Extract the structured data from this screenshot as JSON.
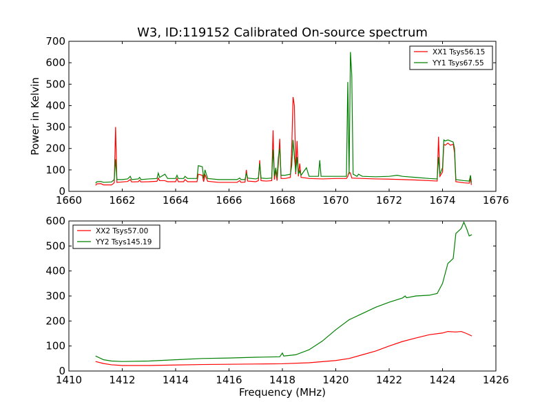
{
  "title": "W3, ID:119152 Calibrated On-source spectrum",
  "colors": {
    "red": "#ff0000",
    "green": "#008000",
    "axis": "#000000"
  },
  "chart_data": [
    {
      "type": "line",
      "title": "W3, ID:119152 Calibrated On-source spectrum",
      "xlabel": "",
      "ylabel": "Power in Kelvin",
      "xlim": [
        1660,
        1676
      ],
      "ylim": [
        0,
        700
      ],
      "xticks": [
        1660,
        1662,
        1664,
        1666,
        1668,
        1670,
        1672,
        1674,
        1676
      ],
      "yticks": [
        0,
        100,
        200,
        300,
        400,
        500,
        600,
        700
      ],
      "legend": "top-right",
      "series": [
        {
          "name": "XX1 Tsys56.15",
          "color": "#ff0000",
          "points": [
            [
              1661.0,
              28
            ],
            [
              1661.05,
              35
            ],
            [
              1661.2,
              36
            ],
            [
              1661.3,
              30
            ],
            [
              1661.6,
              30
            ],
            [
              1661.7,
              40
            ],
            [
              1661.75,
              300
            ],
            [
              1661.8,
              42
            ],
            [
              1662.0,
              44
            ],
            [
              1662.2,
              46
            ],
            [
              1662.3,
              55
            ],
            [
              1662.35,
              44
            ],
            [
              1662.6,
              45
            ],
            [
              1662.65,
              52
            ],
            [
              1662.7,
              44
            ],
            [
              1663.0,
              45
            ],
            [
              1663.3,
              47
            ],
            [
              1663.35,
              62
            ],
            [
              1663.4,
              50
            ],
            [
              1663.6,
              50
            ],
            [
              1663.7,
              45
            ],
            [
              1664.0,
              45
            ],
            [
              1664.05,
              60
            ],
            [
              1664.1,
              45
            ],
            [
              1664.3,
              45
            ],
            [
              1664.35,
              55
            ],
            [
              1664.45,
              45
            ],
            [
              1664.8,
              45
            ],
            [
              1664.85,
              80
            ],
            [
              1665.0,
              75
            ],
            [
              1665.05,
              45
            ],
            [
              1665.1,
              78
            ],
            [
              1665.2,
              47
            ],
            [
              1665.6,
              42
            ],
            [
              1666.0,
              42
            ],
            [
              1666.3,
              42
            ],
            [
              1666.4,
              50
            ],
            [
              1666.45,
              42
            ],
            [
              1666.6,
              43
            ],
            [
              1666.65,
              100
            ],
            [
              1666.7,
              48
            ],
            [
              1667.0,
              45
            ],
            [
              1667.1,
              50
            ],
            [
              1667.15,
              145
            ],
            [
              1667.2,
              50
            ],
            [
              1667.4,
              48
            ],
            [
              1667.6,
              50
            ],
            [
              1667.65,
              285
            ],
            [
              1667.7,
              55
            ],
            [
              1667.75,
              100
            ],
            [
              1667.8,
              50
            ],
            [
              1667.85,
              130
            ],
            [
              1667.9,
              245
            ],
            [
              1667.95,
              60
            ],
            [
              1668.1,
              60
            ],
            [
              1668.3,
              65
            ],
            [
              1668.35,
              200
            ],
            [
              1668.4,
              440
            ],
            [
              1668.45,
              400
            ],
            [
              1668.5,
              80
            ],
            [
              1668.55,
              235
            ],
            [
              1668.6,
              70
            ],
            [
              1668.65,
              130
            ],
            [
              1668.7,
              65
            ],
            [
              1668.9,
              62
            ],
            [
              1669.0,
              60
            ],
            [
              1669.5,
              58
            ],
            [
              1670.0,
              60
            ],
            [
              1670.4,
              60
            ],
            [
              1670.45,
              70
            ],
            [
              1670.5,
              90
            ],
            [
              1670.55,
              85
            ],
            [
              1670.6,
              62
            ],
            [
              1671.0,
              60
            ],
            [
              1671.5,
              58
            ],
            [
              1672.0,
              57
            ],
            [
              1672.5,
              55
            ],
            [
              1673.0,
              53
            ],
            [
              1673.5,
              50
            ],
            [
              1673.8,
              48
            ],
            [
              1673.85,
              255
            ],
            [
              1673.9,
              70
            ],
            [
              1674.0,
              90
            ],
            [
              1674.05,
              220
            ],
            [
              1674.1,
              215
            ],
            [
              1674.2,
              225
            ],
            [
              1674.3,
              215
            ],
            [
              1674.4,
              220
            ],
            [
              1674.45,
              180
            ],
            [
              1674.5,
              45
            ],
            [
              1674.8,
              40
            ],
            [
              1675.0,
              38
            ],
            [
              1675.05,
              60
            ],
            [
              1675.08,
              30
            ]
          ]
        },
        {
          "name": "YY1 Tsys67.55",
          "color": "#008000",
          "points": [
            [
              1661.0,
              38
            ],
            [
              1661.05,
              45
            ],
            [
              1661.2,
              46
            ],
            [
              1661.3,
              42
            ],
            [
              1661.6,
              44
            ],
            [
              1661.7,
              55
            ],
            [
              1661.75,
              150
            ],
            [
              1661.8,
              55
            ],
            [
              1662.0,
              55
            ],
            [
              1662.2,
              58
            ],
            [
              1662.3,
              70
            ],
            [
              1662.35,
              55
            ],
            [
              1662.6,
              58
            ],
            [
              1662.65,
              65
            ],
            [
              1662.7,
              55
            ],
            [
              1663.0,
              58
            ],
            [
              1663.3,
              60
            ],
            [
              1663.35,
              85
            ],
            [
              1663.4,
              65
            ],
            [
              1663.6,
              80
            ],
            [
              1663.7,
              60
            ],
            [
              1664.0,
              60
            ],
            [
              1664.05,
              75
            ],
            [
              1664.1,
              60
            ],
            [
              1664.3,
              60
            ],
            [
              1664.35,
              70
            ],
            [
              1664.45,
              60
            ],
            [
              1664.8,
              60
            ],
            [
              1664.85,
              120
            ],
            [
              1665.0,
              115
            ],
            [
              1665.05,
              60
            ],
            [
              1665.1,
              100
            ],
            [
              1665.2,
              60
            ],
            [
              1665.6,
              55
            ],
            [
              1666.0,
              55
            ],
            [
              1666.3,
              55
            ],
            [
              1666.4,
              62
            ],
            [
              1666.45,
              55
            ],
            [
              1666.6,
              55
            ],
            [
              1666.65,
              85
            ],
            [
              1666.7,
              62
            ],
            [
              1667.0,
              58
            ],
            [
              1667.1,
              62
            ],
            [
              1667.15,
              130
            ],
            [
              1667.2,
              62
            ],
            [
              1667.4,
              60
            ],
            [
              1667.6,
              62
            ],
            [
              1667.65,
              195
            ],
            [
              1667.7,
              70
            ],
            [
              1667.75,
              110
            ],
            [
              1667.8,
              65
            ],
            [
              1667.85,
              160
            ],
            [
              1667.9,
              200
            ],
            [
              1667.95,
              75
            ],
            [
              1668.1,
              75
            ],
            [
              1668.3,
              80
            ],
            [
              1668.35,
              120
            ],
            [
              1668.4,
              240
            ],
            [
              1668.45,
              160
            ],
            [
              1668.5,
              90
            ],
            [
              1668.55,
              160
            ],
            [
              1668.6,
              80
            ],
            [
              1668.65,
              95
            ],
            [
              1668.7,
              75
            ],
            [
              1668.9,
              110
            ],
            [
              1669.0,
              70
            ],
            [
              1669.35,
              70
            ],
            [
              1669.4,
              145
            ],
            [
              1669.45,
              70
            ],
            [
              1670.0,
              70
            ],
            [
              1670.4,
              70
            ],
            [
              1670.45,
              510
            ],
            [
              1670.5,
              80
            ],
            [
              1670.55,
              650
            ],
            [
              1670.6,
              540
            ],
            [
              1670.65,
              80
            ],
            [
              1670.8,
              70
            ],
            [
              1670.85,
              80
            ],
            [
              1671.0,
              70
            ],
            [
              1671.5,
              68
            ],
            [
              1672.0,
              70
            ],
            [
              1672.3,
              75
            ],
            [
              1672.5,
              70
            ],
            [
              1673.0,
              65
            ],
            [
              1673.5,
              60
            ],
            [
              1673.8,
              58
            ],
            [
              1673.85,
              160
            ],
            [
              1673.9,
              80
            ],
            [
              1674.0,
              110
            ],
            [
              1674.05,
              240
            ],
            [
              1674.1,
              235
            ],
            [
              1674.2,
              240
            ],
            [
              1674.3,
              235
            ],
            [
              1674.4,
              230
            ],
            [
              1674.45,
              200
            ],
            [
              1674.5,
              55
            ],
            [
              1674.8,
              50
            ],
            [
              1675.0,
              48
            ],
            [
              1675.05,
              75
            ],
            [
              1675.08,
              40
            ]
          ]
        }
      ]
    },
    {
      "type": "line",
      "title": "",
      "xlabel": "Frequency (MHz)",
      "ylabel": "",
      "xlim": [
        1410,
        1426
      ],
      "ylim": [
        0,
        600
      ],
      "xticks": [
        1410,
        1412,
        1414,
        1416,
        1418,
        1420,
        1422,
        1424,
        1426
      ],
      "yticks": [
        0,
        100,
        200,
        300,
        400,
        500,
        600
      ],
      "legend": "top-left",
      "series": [
        {
          "name": "XX2 Tsys57.00",
          "color": "#ff0000",
          "points": [
            [
              1411.0,
              38
            ],
            [
              1411.3,
              30
            ],
            [
              1411.6,
              25
            ],
            [
              1412.0,
              22
            ],
            [
              1413.0,
              22
            ],
            [
              1414.0,
              24
            ],
            [
              1415.0,
              26
            ],
            [
              1416.0,
              27
            ],
            [
              1417.0,
              28
            ],
            [
              1418.0,
              29
            ],
            [
              1419.0,
              33
            ],
            [
              1420.0,
              42
            ],
            [
              1420.5,
              50
            ],
            [
              1421.0,
              65
            ],
            [
              1421.5,
              80
            ],
            [
              1422.0,
              100
            ],
            [
              1422.5,
              118
            ],
            [
              1423.0,
              132
            ],
            [
              1423.5,
              145
            ],
            [
              1424.0,
              152
            ],
            [
              1424.2,
              158
            ],
            [
              1424.5,
              156
            ],
            [
              1424.7,
              158
            ],
            [
              1424.9,
              150
            ],
            [
              1425.1,
              140
            ]
          ]
        },
        {
          "name": "YY2 Tsys145.19",
          "color": "#008000",
          "points": [
            [
              1411.0,
              60
            ],
            [
              1411.3,
              45
            ],
            [
              1411.6,
              40
            ],
            [
              1412.0,
              38
            ],
            [
              1413.0,
              40
            ],
            [
              1414.0,
              45
            ],
            [
              1415.0,
              50
            ],
            [
              1416.0,
              52
            ],
            [
              1417.0,
              55
            ],
            [
              1417.9,
              57
            ],
            [
              1418.0,
              72
            ],
            [
              1418.05,
              60
            ],
            [
              1418.5,
              65
            ],
            [
              1419.0,
              85
            ],
            [
              1419.5,
              120
            ],
            [
              1420.0,
              165
            ],
            [
              1420.5,
              205
            ],
            [
              1421.0,
              230
            ],
            [
              1421.5,
              255
            ],
            [
              1422.0,
              275
            ],
            [
              1422.5,
              292
            ],
            [
              1422.6,
              300
            ],
            [
              1422.65,
              293
            ],
            [
              1423.0,
              300
            ],
            [
              1423.5,
              303
            ],
            [
              1423.8,
              310
            ],
            [
              1424.0,
              350
            ],
            [
              1424.2,
              430
            ],
            [
              1424.3,
              440
            ],
            [
              1424.4,
              450
            ],
            [
              1424.5,
              550
            ],
            [
              1424.6,
              560
            ],
            [
              1424.7,
              570
            ],
            [
              1424.8,
              595
            ],
            [
              1424.9,
              570
            ],
            [
              1425.0,
              540
            ],
            [
              1425.1,
              545
            ]
          ]
        }
      ]
    }
  ]
}
